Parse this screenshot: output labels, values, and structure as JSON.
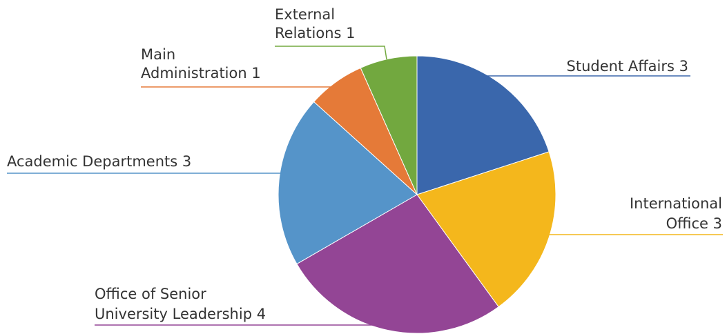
{
  "chart_data": {
    "type": "pie",
    "title": "",
    "slices": [
      {
        "name": "Student Affairs",
        "value": 3,
        "color": "#3A67AC",
        "label_lines": [
          "Student Affairs 3"
        ]
      },
      {
        "name": "International Office",
        "value": 3,
        "color": "#F4B71C",
        "label_lines": [
          "International",
          "Office 3"
        ]
      },
      {
        "name": "Office of Senior University Leadership",
        "value": 4,
        "color": "#934595",
        "label_lines": [
          "Office of Senior",
          "University Leadership 4"
        ]
      },
      {
        "name": "Academic Departments",
        "value": 3,
        "color": "#5594C9",
        "label_lines": [
          "Academic Departments 3"
        ]
      },
      {
        "name": "Main Administration",
        "value": 1,
        "color": "#E57A38",
        "label_lines": [
          "Main",
          "Administration 1"
        ]
      },
      {
        "name": "External Relations",
        "value": 1,
        "color": "#72A83F",
        "label_lines": [
          "External",
          "Relations 1"
        ]
      }
    ],
    "legend": "none",
    "start_angle": "12 o'clock",
    "direction": "clockwise"
  }
}
